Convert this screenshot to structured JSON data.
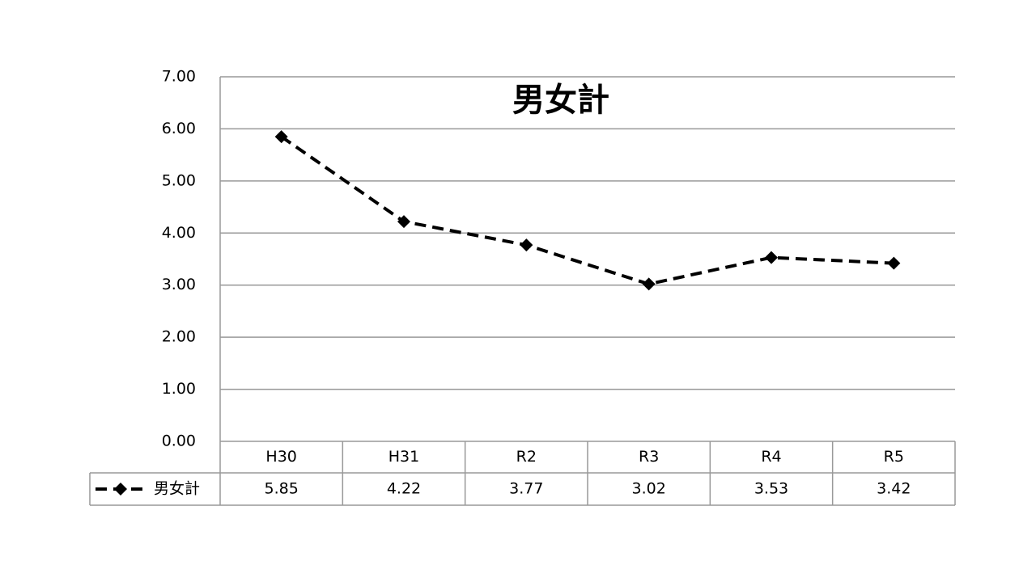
{
  "chart_data": {
    "type": "line",
    "title": "男女計",
    "categories": [
      "H30",
      "H31",
      "R2",
      "R3",
      "R4",
      "R5"
    ],
    "series": [
      {
        "name": "男女計",
        "color": "#000000",
        "values": [
          5.85,
          4.22,
          3.77,
          3.02,
          3.53,
          3.42
        ]
      }
    ],
    "ylim": [
      0,
      7
    ],
    "yticks": [
      {
        "value": 0,
        "label": "0.00"
      },
      {
        "value": 1,
        "label": "1.00"
      },
      {
        "value": 2,
        "label": "2.00"
      },
      {
        "value": 3,
        "label": "3.00"
      },
      {
        "value": 4,
        "label": "4.00"
      },
      {
        "value": 5,
        "label": "5.00"
      },
      {
        "value": 6,
        "label": "6.00"
      },
      {
        "value": 7,
        "label": "7.00"
      }
    ],
    "grid": true
  }
}
